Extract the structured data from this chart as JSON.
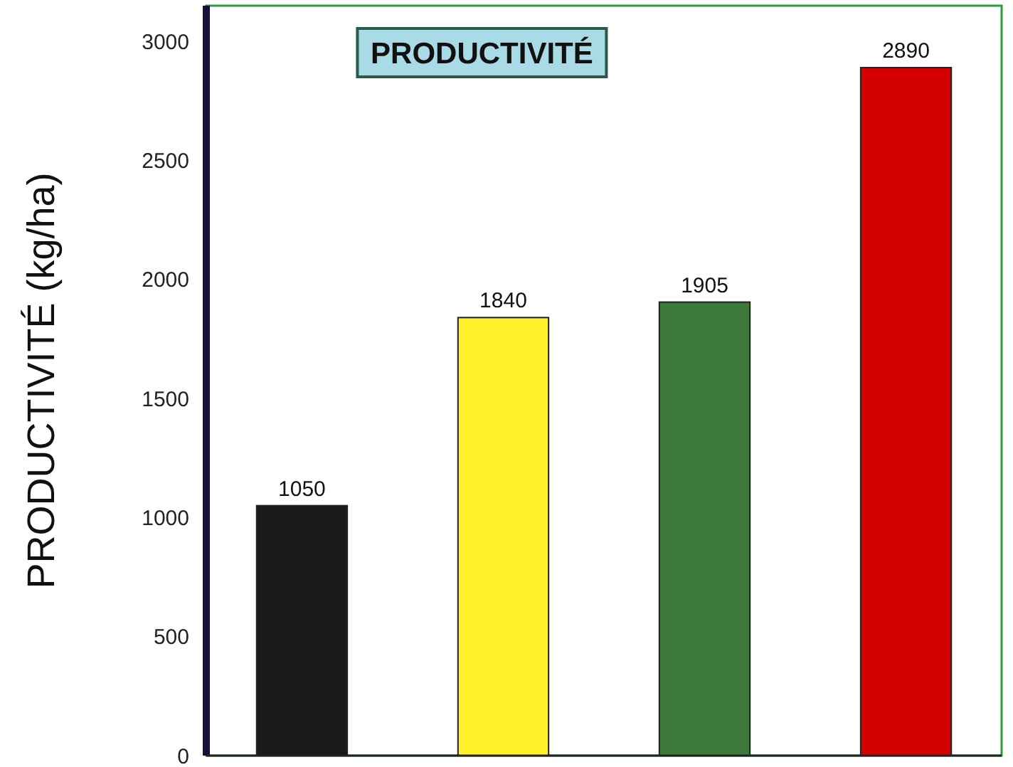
{
  "chart_data": {
    "type": "bar",
    "title": "PRODUCTIVITÉ",
    "ylabel": "PRODUCTIVITÉ (kg/ha)",
    "categories": [
      null,
      null,
      null,
      null
    ],
    "values": [
      1050,
      1840,
      1905,
      2890
    ],
    "colors": [
      "#1a1a1a",
      "#fff22a",
      "#3d7a3a",
      "#d40000"
    ],
    "ylim": [
      0,
      3150
    ],
    "yticks": [
      0,
      500,
      1000,
      1500,
      2000,
      2500,
      3000
    ],
    "data_labels": true
  }
}
